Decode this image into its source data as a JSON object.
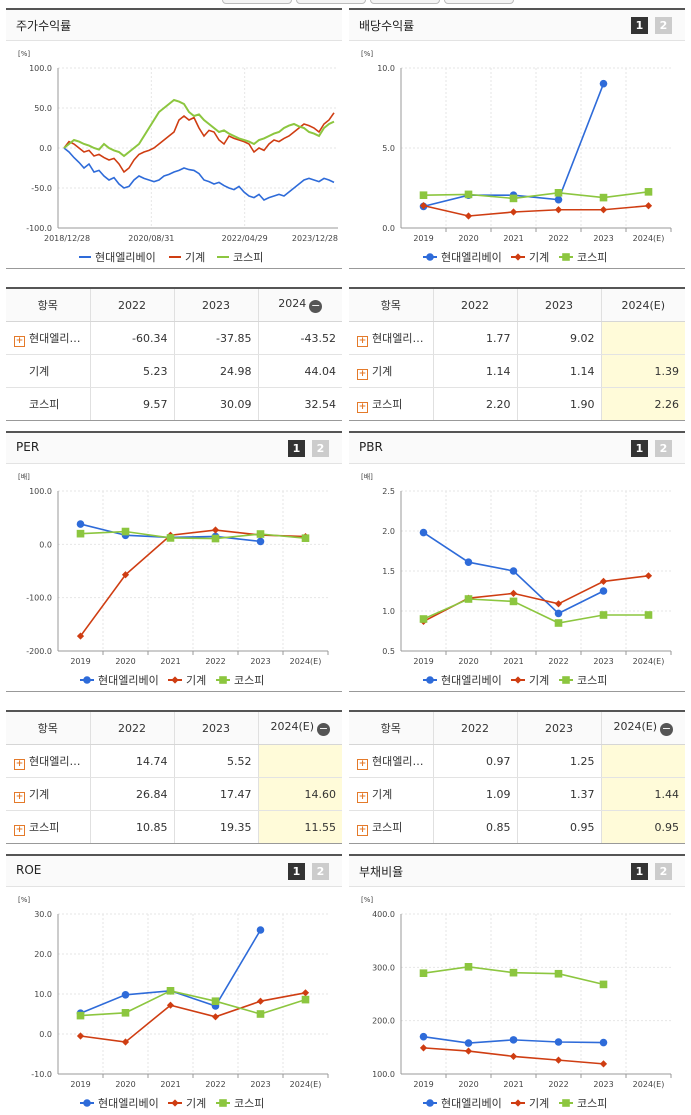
{
  "legend_names": [
    "현대엘리베이",
    "기계",
    "코스피"
  ],
  "colors": {
    "s0": "#2e6bd9",
    "s1": "#cf3d12",
    "s2": "#8cc63f"
  },
  "btn1": "1",
  "btn2": "2",
  "panels": {
    "stock": {
      "title": "주가수익률"
    },
    "div": {
      "title": "배당수익률"
    },
    "per": {
      "title": "PER"
    },
    "pbr": {
      "title": "PBR"
    },
    "roe": {
      "title": "ROE"
    },
    "debt": {
      "title": "부채비율"
    }
  },
  "tables": {
    "stock": {
      "header": [
        "항목",
        "2022",
        "2023",
        "2024"
      ],
      "rows": [
        {
          "name": "현대엘리…",
          "plus": true,
          "v": [
            "-60.34",
            "-37.85",
            "-43.52"
          ]
        },
        {
          "name": "기계",
          "plus": false,
          "v": [
            "5.23",
            "24.98",
            "44.04"
          ]
        },
        {
          "name": "코스피",
          "plus": false,
          "v": [
            "9.57",
            "30.09",
            "32.54"
          ]
        }
      ]
    },
    "div": {
      "header": [
        "항목",
        "2022",
        "2023",
        "2024(E)"
      ],
      "rows": [
        {
          "name": "현대엘리…",
          "plus": true,
          "v": [
            "1.77",
            "9.02",
            ""
          ]
        },
        {
          "name": "기계",
          "plus": true,
          "v": [
            "1.14",
            "1.14",
            "1.39"
          ]
        },
        {
          "name": "코스피",
          "plus": true,
          "v": [
            "2.20",
            "1.90",
            "2.26"
          ]
        }
      ]
    },
    "per": {
      "header": [
        "항목",
        "2022",
        "2023",
        "2024(E)"
      ],
      "rows": [
        {
          "name": "현대엘리…",
          "plus": true,
          "v": [
            "14.74",
            "5.52",
            ""
          ]
        },
        {
          "name": "기계",
          "plus": true,
          "v": [
            "26.84",
            "17.47",
            "14.60"
          ]
        },
        {
          "name": "코스피",
          "plus": true,
          "v": [
            "10.85",
            "19.35",
            "11.55"
          ]
        }
      ]
    },
    "pbr": {
      "header": [
        "항목",
        "2022",
        "2023",
        "2024(E)"
      ],
      "rows": [
        {
          "name": "현대엘리…",
          "plus": true,
          "v": [
            "0.97",
            "1.25",
            ""
          ]
        },
        {
          "name": "기계",
          "plus": true,
          "v": [
            "1.09",
            "1.37",
            "1.44"
          ]
        },
        {
          "name": "코스피",
          "plus": true,
          "v": [
            "0.85",
            "0.95",
            "0.95"
          ]
        }
      ]
    }
  },
  "chart_data": [
    {
      "id": "stock",
      "type": "line",
      "title": "주가수익률",
      "unit": "[%]",
      "ylim": [
        -100,
        100
      ],
      "yticks": [
        100.0,
        50.0,
        0.0,
        -50.0,
        -100.0
      ],
      "xtick_labels": [
        "2018/12/28",
        "2020/08/31",
        "2022/04/29",
        "2023/12/28"
      ],
      "series": [
        {
          "name": "현대엘리베이",
          "values": [
            0,
            -5,
            -12,
            -18,
            -25,
            -20,
            -30,
            -28,
            -35,
            -40,
            -37,
            -45,
            -50,
            -48,
            -40,
            -35,
            -38,
            -40,
            -42,
            -40,
            -35,
            -33,
            -30,
            -28,
            -25,
            -27,
            -28,
            -32,
            -40,
            -42,
            -45,
            -43,
            -47,
            -50,
            -52,
            -48,
            -55,
            -60,
            -62,
            -58,
            -65,
            -62,
            -60,
            -58,
            -60,
            -55,
            -50,
            -45,
            -40,
            -38,
            -40,
            -42,
            -38,
            -40,
            -43
          ]
        },
        {
          "name": "기계",
          "values": [
            0,
            8,
            5,
            0,
            -5,
            -3,
            -10,
            -8,
            -12,
            -15,
            -13,
            -20,
            -30,
            -25,
            -15,
            -8,
            -5,
            -3,
            0,
            5,
            10,
            15,
            20,
            35,
            40,
            35,
            38,
            25,
            15,
            22,
            20,
            10,
            5,
            15,
            12,
            10,
            8,
            5,
            -5,
            0,
            -3,
            5,
            10,
            8,
            12,
            15,
            20,
            25,
            30,
            28,
            25,
            20,
            30,
            35,
            44
          ]
        },
        {
          "name": "코스피",
          "values": [
            0,
            5,
            10,
            8,
            5,
            3,
            0,
            -2,
            5,
            0,
            -3,
            -5,
            -10,
            -5,
            0,
            5,
            15,
            25,
            35,
            45,
            50,
            55,
            60,
            58,
            55,
            45,
            40,
            42,
            35,
            30,
            25,
            20,
            22,
            18,
            15,
            12,
            10,
            8,
            5,
            10,
            12,
            15,
            18,
            20,
            25,
            28,
            30,
            27,
            25,
            20,
            18,
            15,
            25,
            30,
            33
          ]
        }
      ]
    },
    {
      "id": "div",
      "type": "line",
      "title": "배당수익률",
      "unit": "[%]",
      "categories": [
        "2019",
        "2020",
        "2021",
        "2022",
        "2023",
        "2024(E)"
      ],
      "ylim": [
        0,
        10
      ],
      "yticks": [
        10.0,
        5.0,
        0.0
      ],
      "series": [
        {
          "name": "현대엘리베이",
          "values": [
            1.35,
            2.05,
            2.05,
            1.77,
            9.02,
            null
          ]
        },
        {
          "name": "기계",
          "values": [
            1.4,
            0.75,
            1.0,
            1.14,
            1.14,
            1.39
          ]
        },
        {
          "name": "코스피",
          "values": [
            2.05,
            2.1,
            1.85,
            2.2,
            1.9,
            2.26
          ]
        }
      ]
    },
    {
      "id": "per",
      "type": "line",
      "title": "PER",
      "unit": "[배]",
      "categories": [
        "2019",
        "2020",
        "2021",
        "2022",
        "2023",
        "2024(E)"
      ],
      "ylim": [
        -200,
        100
      ],
      "yticks": [
        100.0,
        0.0,
        -100.0,
        -200.0
      ],
      "series": [
        {
          "name": "현대엘리베이",
          "values": [
            38,
            17,
            13,
            14.74,
            5.52,
            null
          ]
        },
        {
          "name": "기계",
          "values": [
            -172,
            -57,
            17,
            26.84,
            17.47,
            14.6
          ]
        },
        {
          "name": "코스피",
          "values": [
            20,
            24,
            12,
            10.85,
            19.35,
            11.55
          ]
        }
      ]
    },
    {
      "id": "pbr",
      "type": "line",
      "title": "PBR",
      "unit": "[배]",
      "categories": [
        "2019",
        "2020",
        "2021",
        "2022",
        "2023",
        "2024(E)"
      ],
      "ylim": [
        0.5,
        2.5
      ],
      "yticks": [
        2.5,
        2.0,
        1.5,
        1.0,
        0.5
      ],
      "series": [
        {
          "name": "현대엘리베이",
          "values": [
            1.98,
            1.61,
            1.5,
            0.97,
            1.25,
            null
          ]
        },
        {
          "name": "기계",
          "values": [
            0.87,
            1.16,
            1.22,
            1.09,
            1.37,
            1.44
          ]
        },
        {
          "name": "코스피",
          "values": [
            0.9,
            1.15,
            1.12,
            0.85,
            0.95,
            0.95
          ]
        }
      ]
    },
    {
      "id": "roe",
      "type": "line",
      "title": "ROE",
      "unit": "[%]",
      "categories": [
        "2019",
        "2020",
        "2021",
        "2022",
        "2023",
        "2024(E)"
      ],
      "ylim": [
        -10,
        30
      ],
      "yticks": [
        30.0,
        20.0,
        10.0,
        0.0,
        -10.0
      ],
      "series": [
        {
          "name": "현대엘리베이",
          "values": [
            5.2,
            9.8,
            10.8,
            7.0,
            26.0,
            null
          ]
        },
        {
          "name": "기계",
          "values": [
            -0.5,
            -2.0,
            7.2,
            4.3,
            8.2,
            10.3
          ]
        },
        {
          "name": "코스피",
          "values": [
            4.6,
            5.3,
            10.8,
            8.2,
            5.0,
            8.6
          ]
        }
      ]
    },
    {
      "id": "debt",
      "type": "line",
      "title": "부채비율",
      "unit": "[%]",
      "categories": [
        "2019",
        "2020",
        "2021",
        "2022",
        "2023",
        "2024(E)"
      ],
      "ylim": [
        100,
        400
      ],
      "yticks": [
        400.0,
        300.0,
        200.0,
        100.0
      ],
      "series": [
        {
          "name": "현대엘리베이",
          "values": [
            170,
            158,
            164,
            160,
            159,
            null
          ]
        },
        {
          "name": "기계",
          "values": [
            149,
            143,
            133,
            126,
            119,
            null
          ]
        },
        {
          "name": "코스피",
          "values": [
            289,
            301,
            290,
            288,
            268,
            null
          ]
        }
      ]
    }
  ]
}
